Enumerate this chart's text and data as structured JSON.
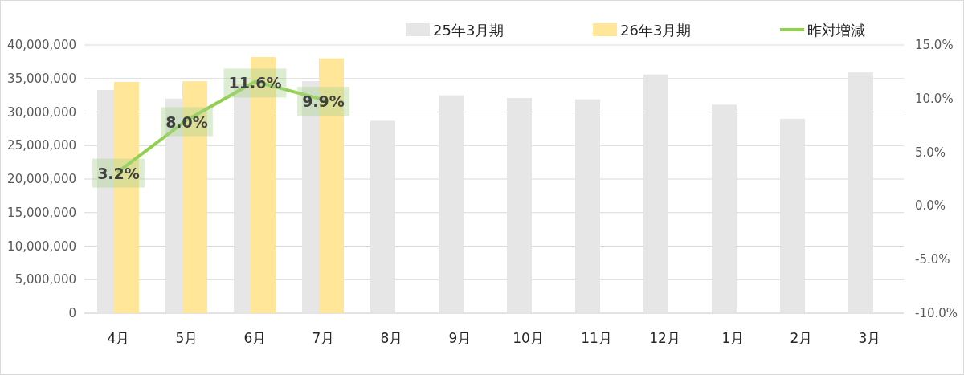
{
  "chart_data": {
    "type": "bar",
    "categories": [
      "4月",
      "5月",
      "6月",
      "7月",
      "8月",
      "9月",
      "10月",
      "11月",
      "12月",
      "1月",
      "2月",
      "3月"
    ],
    "series": [
      {
        "name": "25年3月期",
        "color": "#e7e6e6",
        "values": [
          33300000,
          32000000,
          34200000,
          34600000,
          28700000,
          32500000,
          32100000,
          31900000,
          35600000,
          31100000,
          29000000,
          35900000
        ]
      },
      {
        "name": "26年3月期",
        "color": "#ffe699",
        "values": [
          34500000,
          34600000,
          38200000,
          38000000,
          null,
          null,
          null,
          null,
          null,
          null,
          null,
          null
        ]
      },
      {
        "name": "昨対増減",
        "type": "line",
        "axis": "y2",
        "color": "#92d050",
        "values": [
          3.2,
          8.0,
          11.6,
          9.9,
          null,
          null,
          null,
          null,
          null,
          null,
          null,
          null
        ],
        "value_labels": [
          "3.2%",
          "8.0%",
          "11.6%",
          "9.9%",
          null,
          null,
          null,
          null,
          null,
          null,
          null,
          null
        ]
      }
    ],
    "ylim": [
      0,
      40000000
    ],
    "yticks": [
      {
        "value": 0,
        "label": "0"
      },
      {
        "value": 5000000,
        "label": "5,000,000"
      },
      {
        "value": 10000000,
        "label": "10,000,000"
      },
      {
        "value": 15000000,
        "label": "15,000,000"
      },
      {
        "value": 20000000,
        "label": "20,000,000"
      },
      {
        "value": 25000000,
        "label": "25,000,000"
      },
      {
        "value": 30000000,
        "label": "30,000,000"
      },
      {
        "value": 35000000,
        "label": "35,000,000"
      },
      {
        "value": 40000000,
        "label": "40,000,000"
      }
    ],
    "y2lim": [
      -10,
      15
    ],
    "y2ticks": [
      {
        "value": -10,
        "label": "-10.0%"
      },
      {
        "value": -5,
        "label": "-5.0%"
      },
      {
        "value": 0,
        "label": "0.0%"
      },
      {
        "value": 5,
        "label": "5.0%"
      },
      {
        "value": 10,
        "label": "10.0%"
      },
      {
        "value": 15,
        "label": "15.0%"
      }
    ],
    "grid": "y",
    "legend": "top right"
  }
}
